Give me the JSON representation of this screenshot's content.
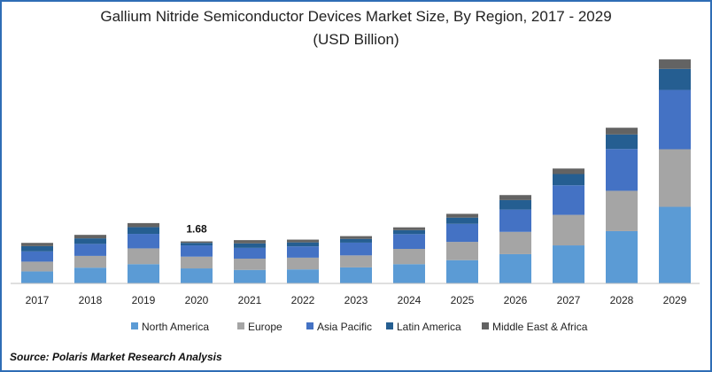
{
  "chart_data": {
    "type": "bar",
    "stacked": true,
    "title": "Gallium Nitride Semiconductor Devices Market Size, By Region, 2017 - 2029",
    "subtitle": "(USD Billion)",
    "categories": [
      "2017",
      "2018",
      "2019",
      "2020",
      "2021",
      "2022",
      "2023",
      "2024",
      "2025",
      "2026",
      "2027",
      "2028",
      "2029"
    ],
    "series": [
      {
        "name": "North America",
        "color": "#5b9bd5",
        "values": [
          0.48,
          0.63,
          0.77,
          0.6,
          0.54,
          0.56,
          0.64,
          0.77,
          0.93,
          1.17,
          1.52,
          2.09,
          3.06
        ]
      },
      {
        "name": "Europe",
        "color": "#a5a5a5",
        "values": [
          0.39,
          0.47,
          0.63,
          0.47,
          0.45,
          0.47,
          0.48,
          0.61,
          0.73,
          0.89,
          1.22,
          1.61,
          2.3
        ]
      },
      {
        "name": "Asia Pacific",
        "color": "#4472c4",
        "values": [
          0.41,
          0.48,
          0.58,
          0.45,
          0.43,
          0.45,
          0.51,
          0.59,
          0.72,
          0.89,
          1.18,
          1.67,
          2.37
        ]
      },
      {
        "name": "Latin America",
        "color": "#255e91",
        "values": [
          0.21,
          0.22,
          0.27,
          0.1,
          0.18,
          0.16,
          0.15,
          0.16,
          0.25,
          0.38,
          0.45,
          0.58,
          0.84
        ]
      },
      {
        "name": "Middle East & Africa",
        "color": "#636363",
        "values": [
          0.13,
          0.14,
          0.16,
          0.06,
          0.13,
          0.11,
          0.11,
          0.11,
          0.15,
          0.2,
          0.22,
          0.27,
          0.38
        ]
      }
    ],
    "data_labels": [
      {
        "category": "2020",
        "text": "1.68"
      }
    ],
    "ylim": [
      0,
      9.2
    ],
    "grid": false,
    "legend": "bottom"
  },
  "source": "Source: Polaris  Market Research Analysis"
}
